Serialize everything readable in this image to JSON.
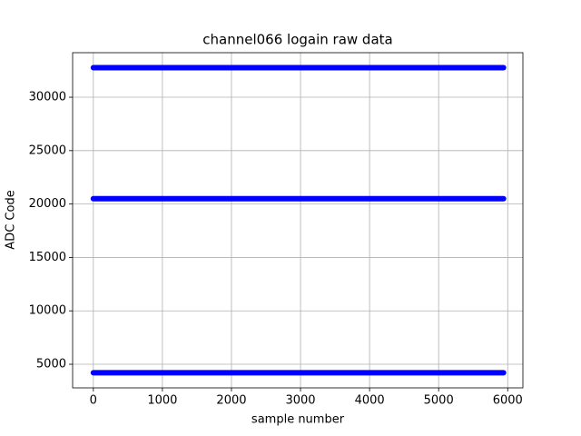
{
  "chart_data": {
    "type": "line",
    "title": "channel066 logain raw data",
    "x_label": "sample number",
    "y_label": "ADC Code",
    "x": [
      0,
      5940
    ],
    "series": [
      {
        "name": null,
        "color": "#0000ff",
        "values": [
          32767,
          32767
        ]
      },
      {
        "name": null,
        "color": "#0000ff",
        "values": [
          20500,
          20500
        ]
      },
      {
        "name": null,
        "color": "#0000ff",
        "values": [
          4200,
          4200
        ]
      }
    ],
    "xlim": [
      -300,
      6220
    ],
    "xticks": [
      0,
      1000,
      2000,
      3000,
      4000,
      5000,
      6000
    ],
    "ylim": [
      2790,
      34170
    ],
    "yticks": [
      5000,
      10000,
      15000,
      20000,
      25000,
      30000
    ],
    "grid": true
  }
}
